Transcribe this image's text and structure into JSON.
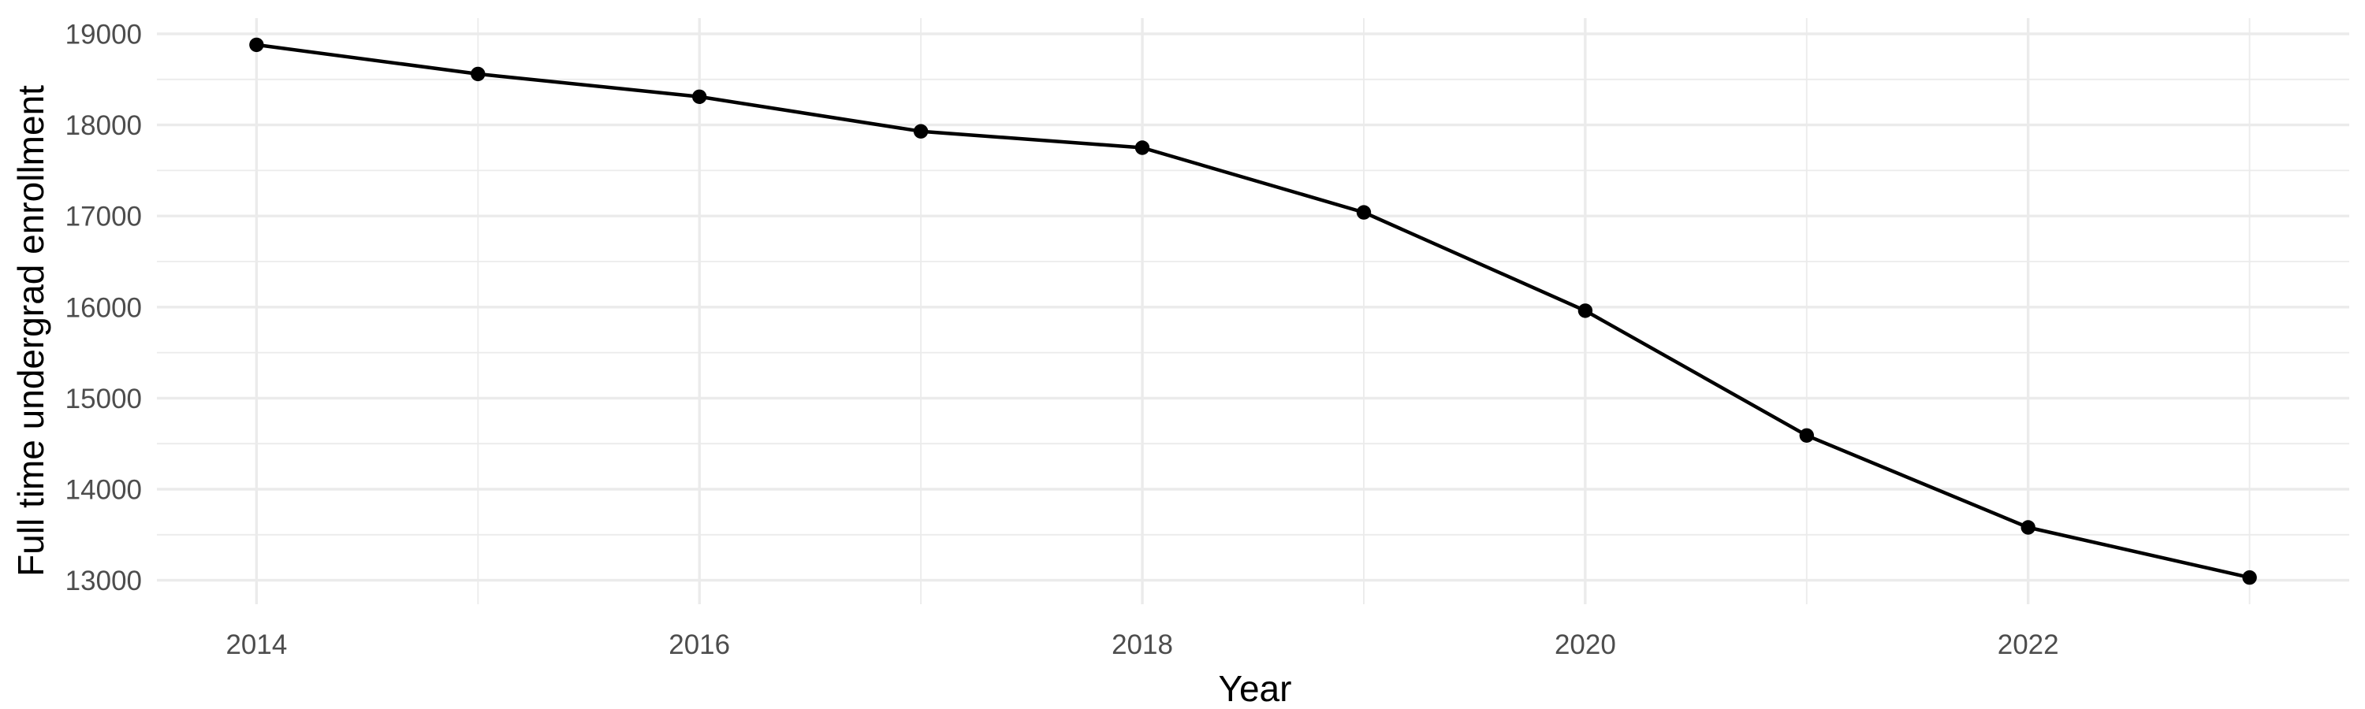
{
  "chart_data": {
    "type": "line",
    "title": "",
    "xlabel": "Year",
    "ylabel": "Full time undergrad enrollment",
    "x": [
      2014,
      2015,
      2016,
      2017,
      2018,
      2019,
      2020,
      2021,
      2022,
      2023
    ],
    "series": [
      {
        "name": "Full time undergrad enrollment",
        "values": [
          18880,
          18560,
          18310,
          17930,
          17750,
          17040,
          15960,
          14590,
          13580,
          13030
        ]
      }
    ],
    "xlim": [
      2013.55,
      2023.45
    ],
    "ylim": [
      12737,
      19173
    ],
    "x_ticks_major": [
      2014,
      2016,
      2018,
      2020,
      2022
    ],
    "x_ticks_minor": [
      2015,
      2017,
      2019,
      2021,
      2023
    ],
    "y_ticks_major": [
      19000,
      18000,
      17000,
      16000,
      15000,
      14000,
      13000
    ],
    "y_ticks_minor": [
      18500,
      17500,
      16500,
      15500,
      14500,
      13500
    ],
    "grid": true,
    "legend_position": "none",
    "colors": {
      "line": "#000000",
      "point": "#000000",
      "grid": "#ebebeb",
      "tick_label": "#4d4d4d",
      "axis_title": "#000000",
      "background": "#ffffff"
    }
  }
}
